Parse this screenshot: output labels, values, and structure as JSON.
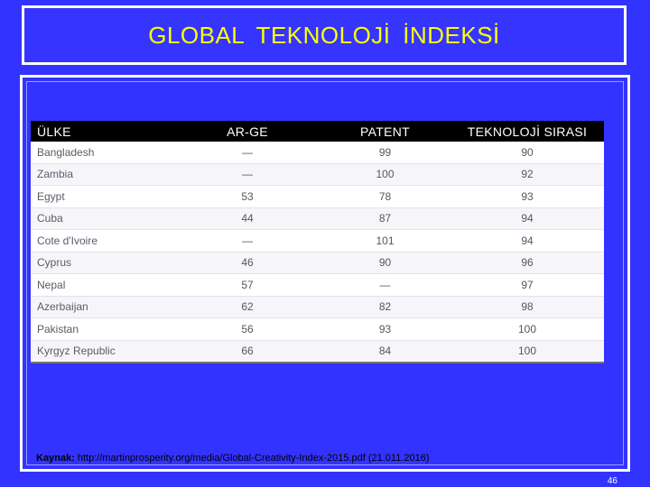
{
  "title": "GLOBAL TEKNOLOJİ İNDEKSİ",
  "table": {
    "headers": [
      "ÜLKE",
      "AR-GE",
      "PATENT",
      "TEKNOLOJİ SIRASI"
    ],
    "rows": [
      [
        "Bangladesh",
        "—",
        "99",
        "90"
      ],
      [
        "Zambia",
        "—",
        "100",
        "92"
      ],
      [
        "Egypt",
        "53",
        "78",
        "93"
      ],
      [
        "Cuba",
        "44",
        "87",
        "94"
      ],
      [
        "Cote d'Ivoire",
        "—",
        "101",
        "94"
      ],
      [
        "Cyprus",
        "46",
        "90",
        "96"
      ],
      [
        "Nepal",
        "57",
        "—",
        "97"
      ],
      [
        "Azerbaijan",
        "62",
        "82",
        "98"
      ],
      [
        "Pakistan",
        "56",
        "93",
        "100"
      ],
      [
        "Kyrgyz Republic",
        "66",
        "84",
        "100"
      ]
    ]
  },
  "source": {
    "label": "Kaynak:",
    "text": " http://martinprosperity.org/media/Global-Creativity-Index-2015.pdf (21.011.2016)"
  },
  "page_number": "46",
  "colors": {
    "background": "#3333ff",
    "title_text": "#ffff00",
    "header_bg": "#000000"
  }
}
